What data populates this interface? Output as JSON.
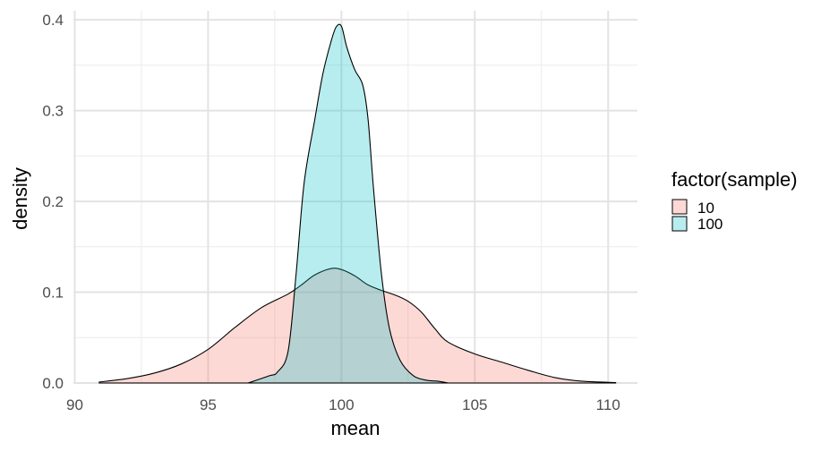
{
  "chart_data": {
    "type": "area",
    "title": "",
    "xlabel": "mean",
    "ylabel": "density",
    "xlim": [
      89.95,
      111.1
    ],
    "ylim": [
      0,
      0.41
    ],
    "x_ticks": [
      90,
      95,
      100,
      105,
      110
    ],
    "x_tick_labels": [
      "90",
      "95",
      "100",
      "105",
      "110"
    ],
    "y_ticks": [
      0.0,
      0.1,
      0.2,
      0.3,
      0.4
    ],
    "y_tick_labels": [
      "0.0",
      "0.1",
      "0.2",
      "0.3",
      "0.4"
    ],
    "grid": true,
    "legend": {
      "title": "factor(sample)",
      "position": "right"
    },
    "series": [
      {
        "name": "10",
        "color": "#F8766D",
        "points": [
          [
            90.9,
            0.001
          ],
          [
            92.0,
            0.005
          ],
          [
            93.0,
            0.011
          ],
          [
            94.0,
            0.021
          ],
          [
            95.0,
            0.037
          ],
          [
            96.0,
            0.061
          ],
          [
            97.0,
            0.083
          ],
          [
            98.0,
            0.098
          ],
          [
            98.5,
            0.108
          ],
          [
            99.0,
            0.119
          ],
          [
            99.6,
            0.126
          ],
          [
            100.0,
            0.125
          ],
          [
            100.5,
            0.118
          ],
          [
            101.0,
            0.108
          ],
          [
            101.5,
            0.102
          ],
          [
            102.0,
            0.097
          ],
          [
            102.5,
            0.09
          ],
          [
            103.0,
            0.078
          ],
          [
            103.5,
            0.06
          ],
          [
            104.0,
            0.045
          ],
          [
            105.0,
            0.032
          ],
          [
            106.0,
            0.023
          ],
          [
            107.0,
            0.014
          ],
          [
            108.0,
            0.006
          ],
          [
            109.0,
            0.002
          ],
          [
            110.3,
            0.0005
          ]
        ]
      },
      {
        "name": "100",
        "color": "#00BFC4",
        "points": [
          [
            96.5,
            0.0
          ],
          [
            97.3,
            0.008
          ],
          [
            97.6,
            0.012
          ],
          [
            98.0,
            0.035
          ],
          [
            98.3,
            0.12
          ],
          [
            98.6,
            0.22
          ],
          [
            99.0,
            0.29
          ],
          [
            99.3,
            0.34
          ],
          [
            99.6,
            0.375
          ],
          [
            99.8,
            0.392
          ],
          [
            100.0,
            0.393
          ],
          [
            100.2,
            0.37
          ],
          [
            100.5,
            0.345
          ],
          [
            100.8,
            0.328
          ],
          [
            101.0,
            0.29
          ],
          [
            101.2,
            0.215
          ],
          [
            101.5,
            0.12
          ],
          [
            101.8,
            0.06
          ],
          [
            102.2,
            0.025
          ],
          [
            102.7,
            0.008
          ],
          [
            103.2,
            0.003
          ],
          [
            103.6,
            0.002
          ],
          [
            104.0,
            0.0
          ]
        ]
      }
    ]
  }
}
